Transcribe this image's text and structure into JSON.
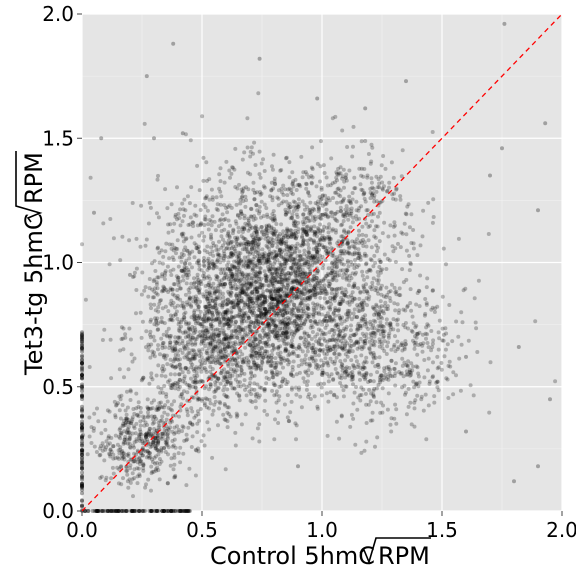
{
  "chart_data": {
    "type": "scatter",
    "title": "",
    "xlabel": "Control 5hmC",
    "ylabel": "Tet3-tg 5hmC",
    "xlabel_sqrt": "RPM",
    "ylabel_sqrt": "RPM",
    "xlim": [
      0,
      2
    ],
    "ylim": [
      0,
      2
    ],
    "x_ticks": [
      "0.0",
      "0.5",
      "1.0",
      "1.5",
      "2.0"
    ],
    "y_ticks": [
      "0.0",
      "0.5",
      "1.0",
      "1.5",
      "2.0"
    ],
    "tick_values": [
      0,
      0.5,
      1.0,
      1.5,
      2.0
    ],
    "reference_line": {
      "slope": 1,
      "intercept": 0,
      "style": "dashed",
      "color": "#ff0000"
    },
    "panel_background": "#e5e5e5",
    "grid": true,
    "point_color": "#000000",
    "point_alpha": 0.25,
    "density_clusters": [
      {
        "center_x": 0.78,
        "center_y": 0.92,
        "spread_x": 0.22,
        "spread_y": 0.2,
        "weight": 0.48
      },
      {
        "center_x": 0.55,
        "center_y": 0.65,
        "spread_x": 0.16,
        "spread_y": 0.16,
        "weight": 0.16
      },
      {
        "center_x": 0.25,
        "center_y": 0.28,
        "spread_x": 0.1,
        "spread_y": 0.08,
        "weight": 0.08
      },
      {
        "center_x": 1.2,
        "center_y": 0.65,
        "spread_x": 0.18,
        "spread_y": 0.14,
        "weight": 0.12
      },
      {
        "center_x": 1.1,
        "center_y": 1.2,
        "spread_x": 0.18,
        "spread_y": 0.15,
        "weight": 0.06
      }
    ],
    "sample_points": [
      [
        0.38,
        1.88
      ],
      [
        0.74,
        1.82
      ],
      [
        1.76,
        1.96
      ],
      [
        1.18,
        1.62
      ],
      [
        0.98,
        1.66
      ],
      [
        1.35,
        1.73
      ],
      [
        1.93,
        1.56
      ],
      [
        0.3,
        1.5
      ],
      [
        0.42,
        1.52
      ],
      [
        0.72,
        1.28
      ],
      [
        1.75,
        1.46
      ],
      [
        1.9,
        1.21
      ],
      [
        1.95,
        0.45
      ],
      [
        1.9,
        0.18
      ],
      [
        1.8,
        0.12
      ],
      [
        1.48,
        0.52
      ],
      [
        1.6,
        0.62
      ],
      [
        0.05,
        1.2
      ],
      [
        0.08,
        1.5
      ],
      [
        1.7,
        1.35
      ],
      [
        0.2,
        0.95
      ],
      [
        1.82,
        0.66
      ],
      [
        1.6,
        0.32
      ],
      [
        0.9,
        0.18
      ],
      [
        0.27,
        1.75
      ]
    ]
  }
}
